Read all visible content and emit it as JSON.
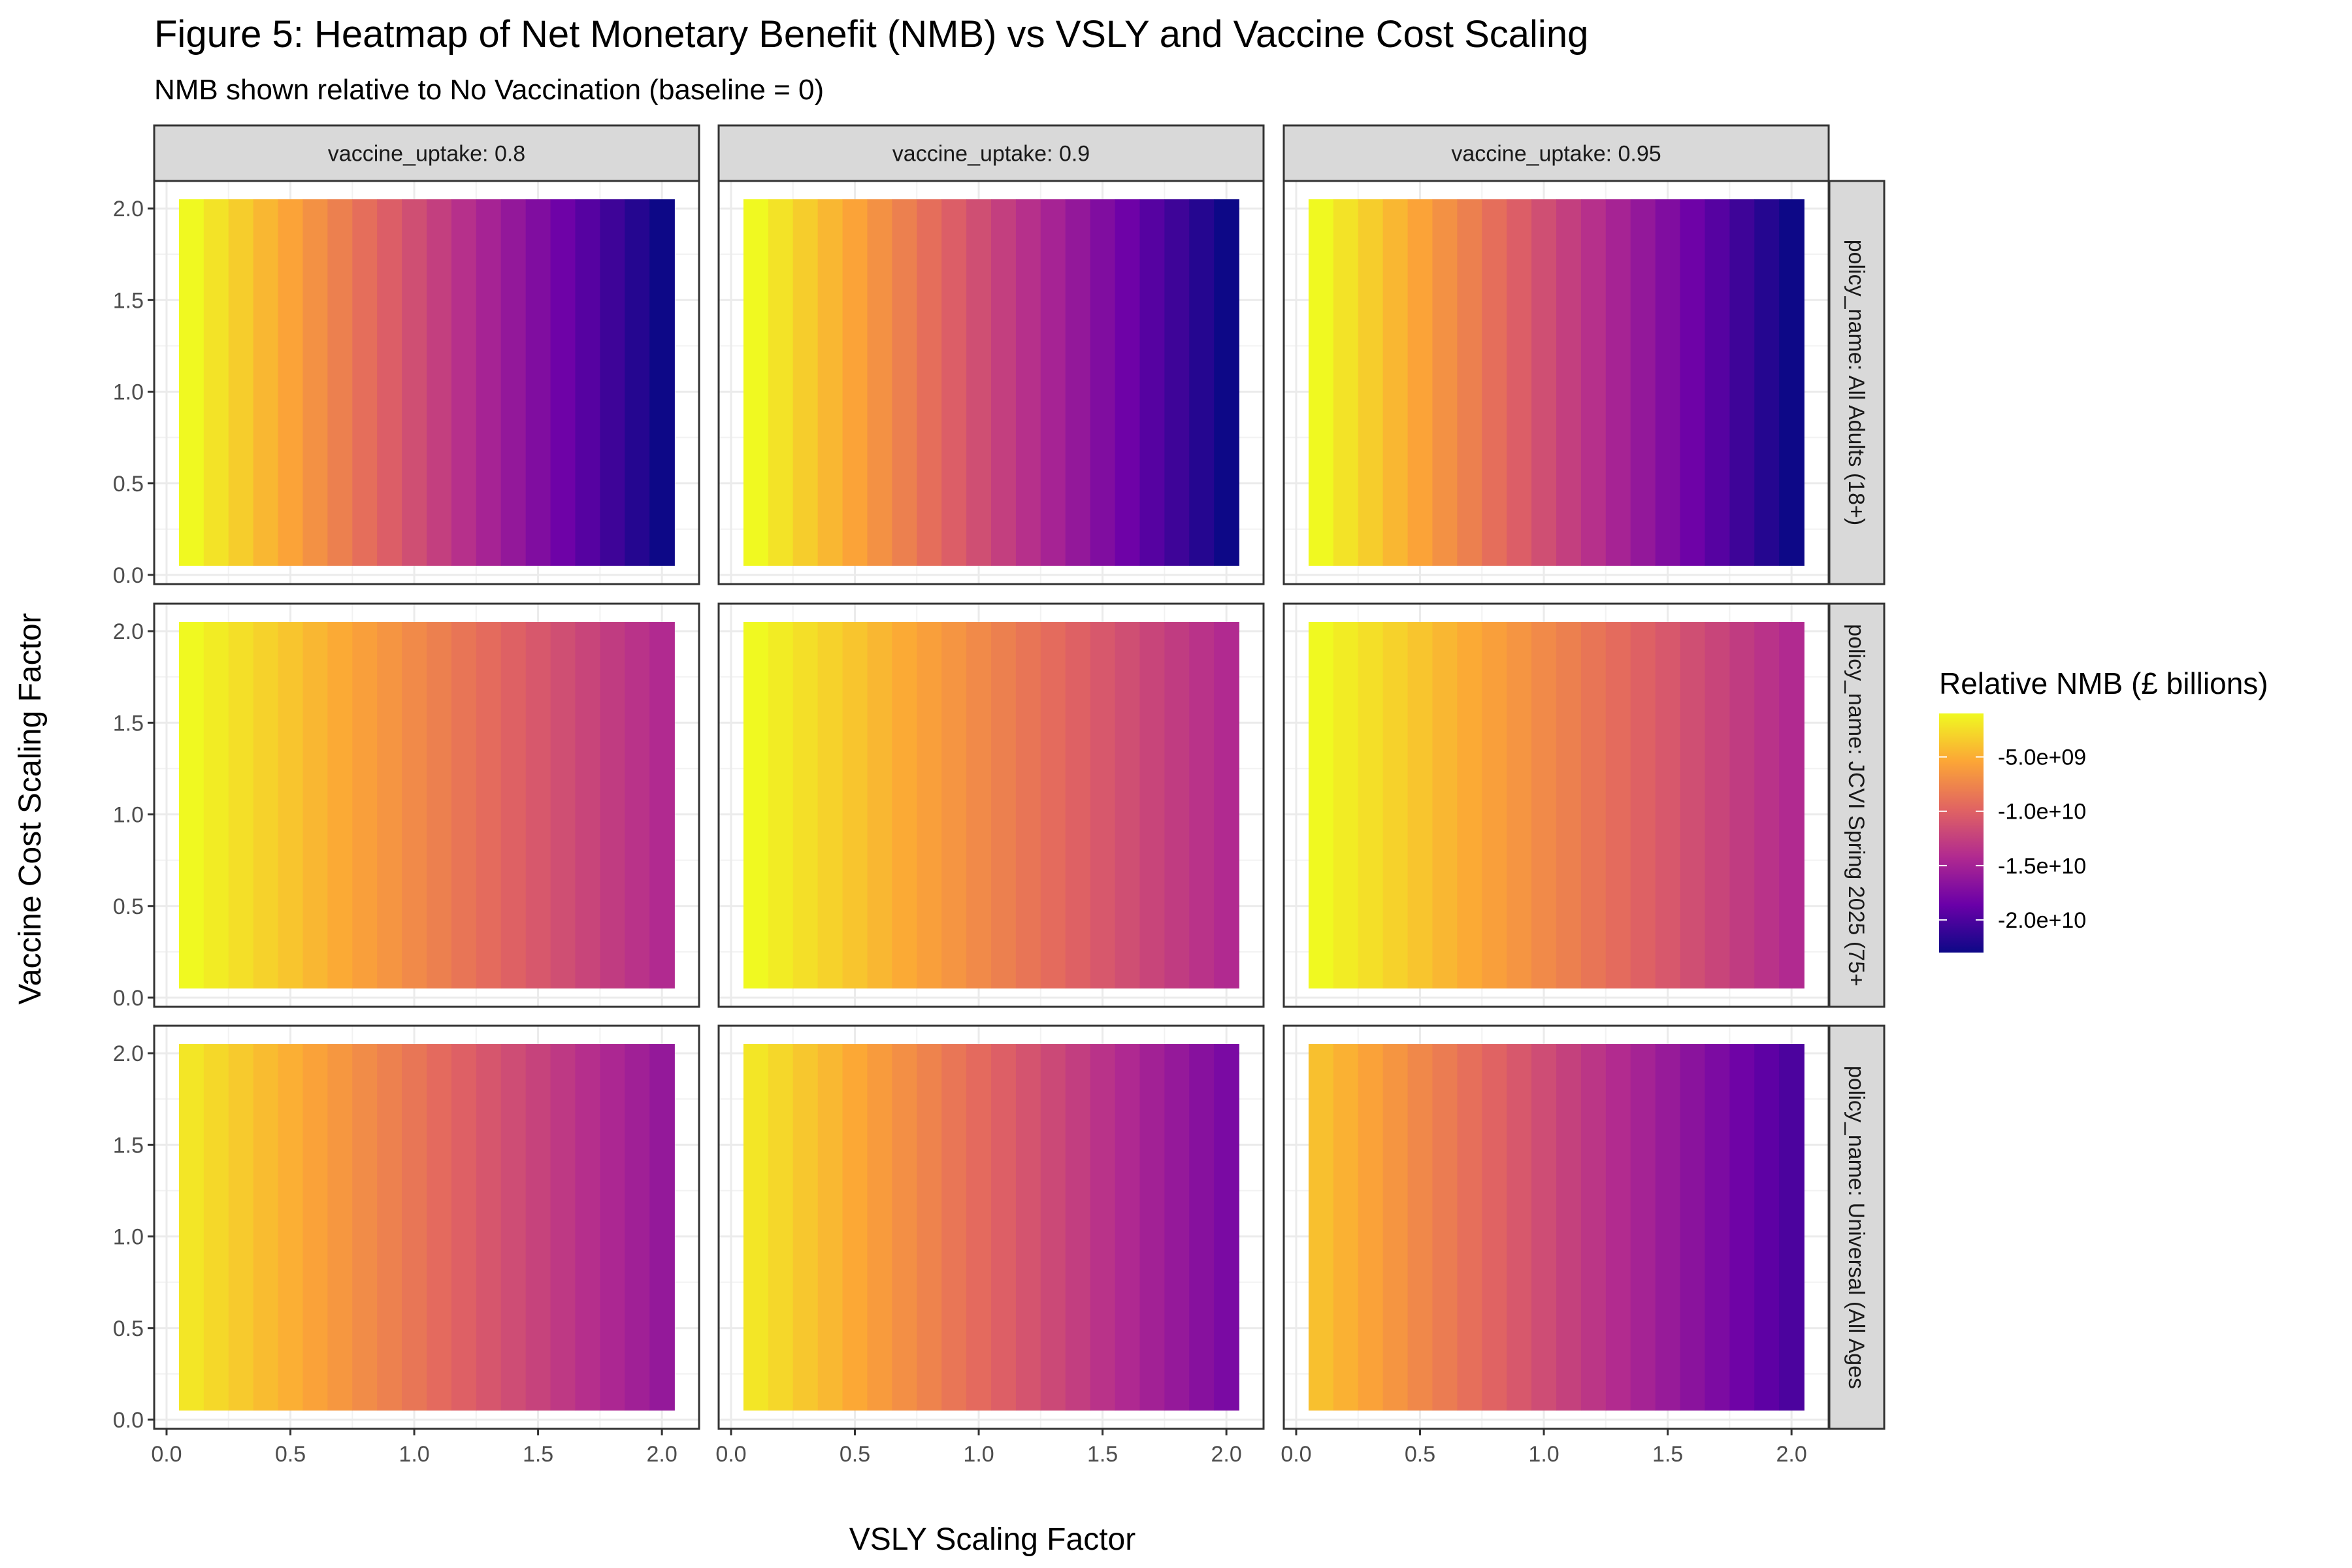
{
  "figure": {
    "title": "Figure 5: Heatmap of Net Monetary Benefit (NMB) vs VSLY and Vaccine Cost Scaling",
    "subtitle": "NMB shown relative to No Vaccination (baseline = 0)"
  },
  "chart_data": {
    "type": "heatmap",
    "title": "Figure 5: Heatmap of Net Monetary Benefit (NMB) vs VSLY and Vaccine Cost Scaling",
    "subtitle": "NMB shown relative to No Vaccination (baseline = 0)",
    "xlabel": "VSLY Scaling Factor",
    "ylabel": "Vaccine Cost Scaling Factor",
    "xlim": [
      -0.05,
      2.15
    ],
    "ylim": [
      -0.05,
      2.15
    ],
    "x_ticks": [
      "0.0",
      "0.5",
      "1.0",
      "1.5",
      "2.0"
    ],
    "y_ticks": [
      "0.0",
      "0.5",
      "1.0",
      "1.5",
      "2.0"
    ],
    "x_values": [
      0.1,
      0.2,
      0.3,
      0.4,
      0.5,
      0.6,
      0.7,
      0.8,
      0.9,
      1.0,
      1.1,
      1.2,
      1.3,
      1.4,
      1.5,
      1.6,
      1.7,
      1.8,
      1.9,
      2.0
    ],
    "y_range": [
      0.05,
      2.05
    ],
    "col_facets": [
      "vaccine_uptake: 0.8",
      "vaccine_uptake: 0.9",
      "vaccine_uptake: 0.95"
    ],
    "row_facets": [
      "policy_name: All Adults (18+)",
      "policy_name: JCVI Spring 2025 (75+",
      "policy_name: Universal (All Ages"
    ],
    "grid": true,
    "panels": [
      {
        "row": 0,
        "col": 0,
        "nmb_start": -1000000000.0,
        "nmb_end": -23000000000.0
      },
      {
        "row": 0,
        "col": 1,
        "nmb_start": -1000000000.0,
        "nmb_end": -23000000000.0
      },
      {
        "row": 0,
        "col": 2,
        "nmb_start": -1000000000.0,
        "nmb_end": -23000000000.0
      },
      {
        "row": 1,
        "col": 0,
        "nmb_start": -1000000000.0,
        "nmb_end": -14200000000.0
      },
      {
        "row": 1,
        "col": 1,
        "nmb_start": -1000000000.0,
        "nmb_end": -14200000000.0
      },
      {
        "row": 1,
        "col": 2,
        "nmb_start": -1000000000.0,
        "nmb_end": -14200000000.0
      },
      {
        "row": 2,
        "col": 0,
        "nmb_start": -2000000000.0,
        "nmb_end": -16000000000.0
      },
      {
        "row": 2,
        "col": 1,
        "nmb_start": -2000000000.0,
        "nmb_end": -17600000000.0
      },
      {
        "row": 2,
        "col": 2,
        "nmb_start": -4000000000.0,
        "nmb_end": -20000000000.0
      }
    ],
    "legend": {
      "title": "Relative NMB (£ billions)",
      "position": "right",
      "breaks": [
        -5000000000.0,
        -10000000000.0,
        -15000000000.0,
        -20000000000.0
      ],
      "labels": [
        "-5.0e+09",
        "-1.0e+10",
        "-1.5e+10",
        "-2.0e+10"
      ],
      "limits": [
        -23000000000.0,
        -1000000000.0
      ]
    },
    "palette": [
      "#0d0887",
      "#6a00a8",
      "#b12a90",
      "#e16462",
      "#fca636",
      "#f0f921"
    ]
  }
}
